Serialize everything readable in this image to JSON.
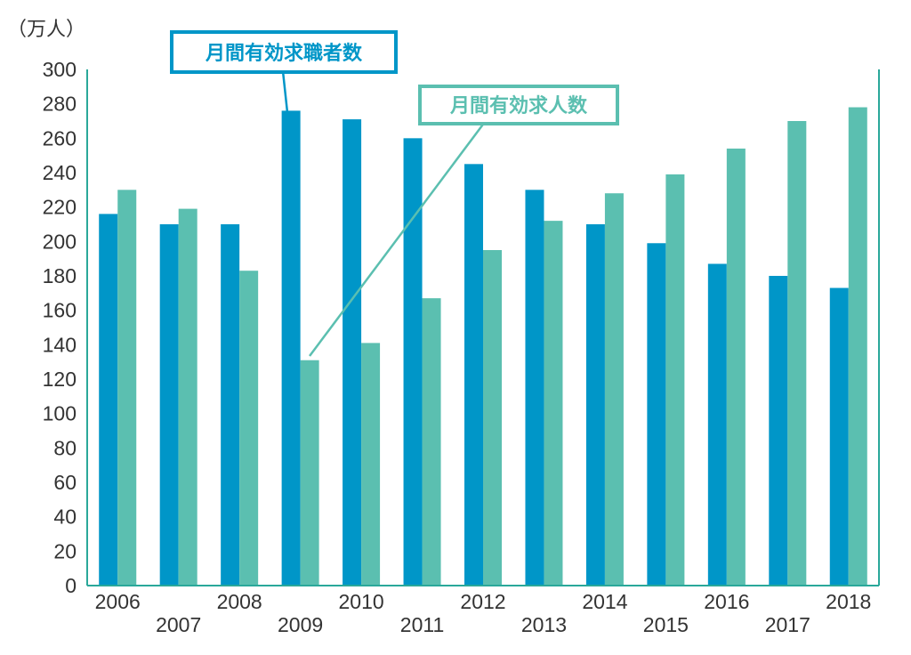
{
  "chart_data": {
    "type": "bar",
    "unit_label": "（万人）",
    "categories": [
      "2006",
      "2007",
      "2008",
      "2009",
      "2010",
      "2011",
      "2012",
      "2013",
      "2014",
      "2015",
      "2016",
      "2017",
      "2018"
    ],
    "series": [
      {
        "name": "月間有効求職者数",
        "color": "#0096c8",
        "values": [
          216,
          210,
          210,
          276,
          271,
          260,
          245,
          230,
          210,
          199,
          187,
          180,
          173
        ]
      },
      {
        "name": "月間有効求人数",
        "color": "#5bbfb0",
        "values": [
          230,
          219,
          183,
          131,
          141,
          167,
          195,
          212,
          228,
          239,
          254,
          270,
          278
        ]
      }
    ],
    "ylim": [
      0,
      300
    ],
    "yticks": [
      0,
      20,
      40,
      60,
      80,
      100,
      120,
      140,
      160,
      180,
      200,
      220,
      240,
      260,
      280,
      300
    ],
    "grid": false,
    "legend": "callouts"
  }
}
